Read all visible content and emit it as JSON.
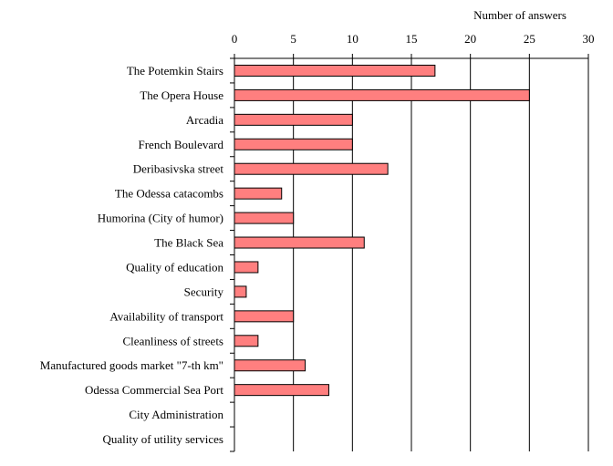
{
  "chart_data": {
    "type": "bar",
    "orientation": "horizontal",
    "axis_position": "top",
    "xlabel": "Number of answers",
    "xlim": [
      0,
      30
    ],
    "x_ticks": [
      0,
      5,
      10,
      15,
      20,
      25,
      30
    ],
    "grid": true,
    "categories": [
      "The Potemkin Stairs",
      "The Opera House",
      "Arcadia",
      "French Boulevard",
      "Deribasivska street",
      "The Odessa catacombs",
      "Humorina (City of humor)",
      "The Black Sea",
      "Quality of education",
      "Security",
      "Availability of transport",
      "Cleanliness of streets",
      "Manufactured goods market \"7-th km\"",
      "Odessa Commercial Sea Port",
      "City Administration",
      "Quality of utility services"
    ],
    "values": [
      17,
      25,
      10,
      10,
      13,
      4,
      5,
      11,
      2,
      1,
      5,
      2,
      6,
      8,
      0,
      0
    ],
    "colors": {
      "bar_fill": "#ff7f7f",
      "bar_stroke": "#000000",
      "grid": "#000000"
    }
  }
}
